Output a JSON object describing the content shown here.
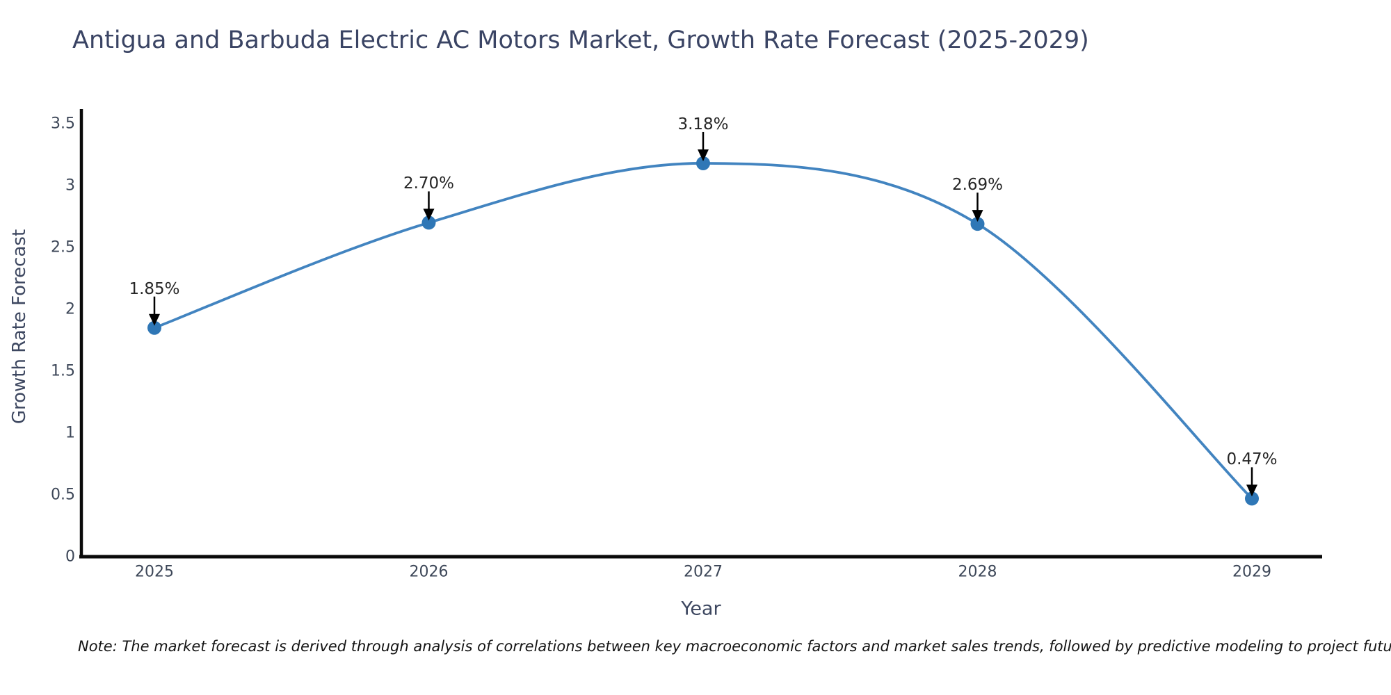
{
  "title": "Antigua and Barbuda Electric AC Motors Market, Growth Rate Forecast (2025-2029)",
  "note": "Note: The market forecast is derived through analysis of correlations between key macroeconomic factors and market sales trends, followed by predictive modeling to project future sales",
  "chart_data": {
    "type": "line",
    "title": "Antigua and Barbuda Electric AC Motors Market, Growth Rate Forecast (2025-2029)",
    "x": [
      2025,
      2026,
      2027,
      2028,
      2029
    ],
    "values": [
      1.85,
      2.7,
      3.18,
      2.69,
      0.47
    ],
    "point_labels": [
      "1.85%",
      "2.70%",
      "3.18%",
      "2.69%",
      "0.47%"
    ],
    "xlabel": "Year",
    "ylabel": "Growth Rate Forecast",
    "ylim": [
      0,
      3.5
    ],
    "yticks": [
      0,
      0.5,
      1,
      1.5,
      2,
      2.5,
      3,
      3.5
    ],
    "grid": false,
    "legend": "none",
    "smooth": true,
    "annotations": "value labels with downward arrows above each point",
    "colors": {
      "line": "#4284c0",
      "marker": "#2f77b6",
      "arrow": "#000000",
      "axis_spine": "#0a0a0a",
      "text": "#3d4760"
    }
  }
}
